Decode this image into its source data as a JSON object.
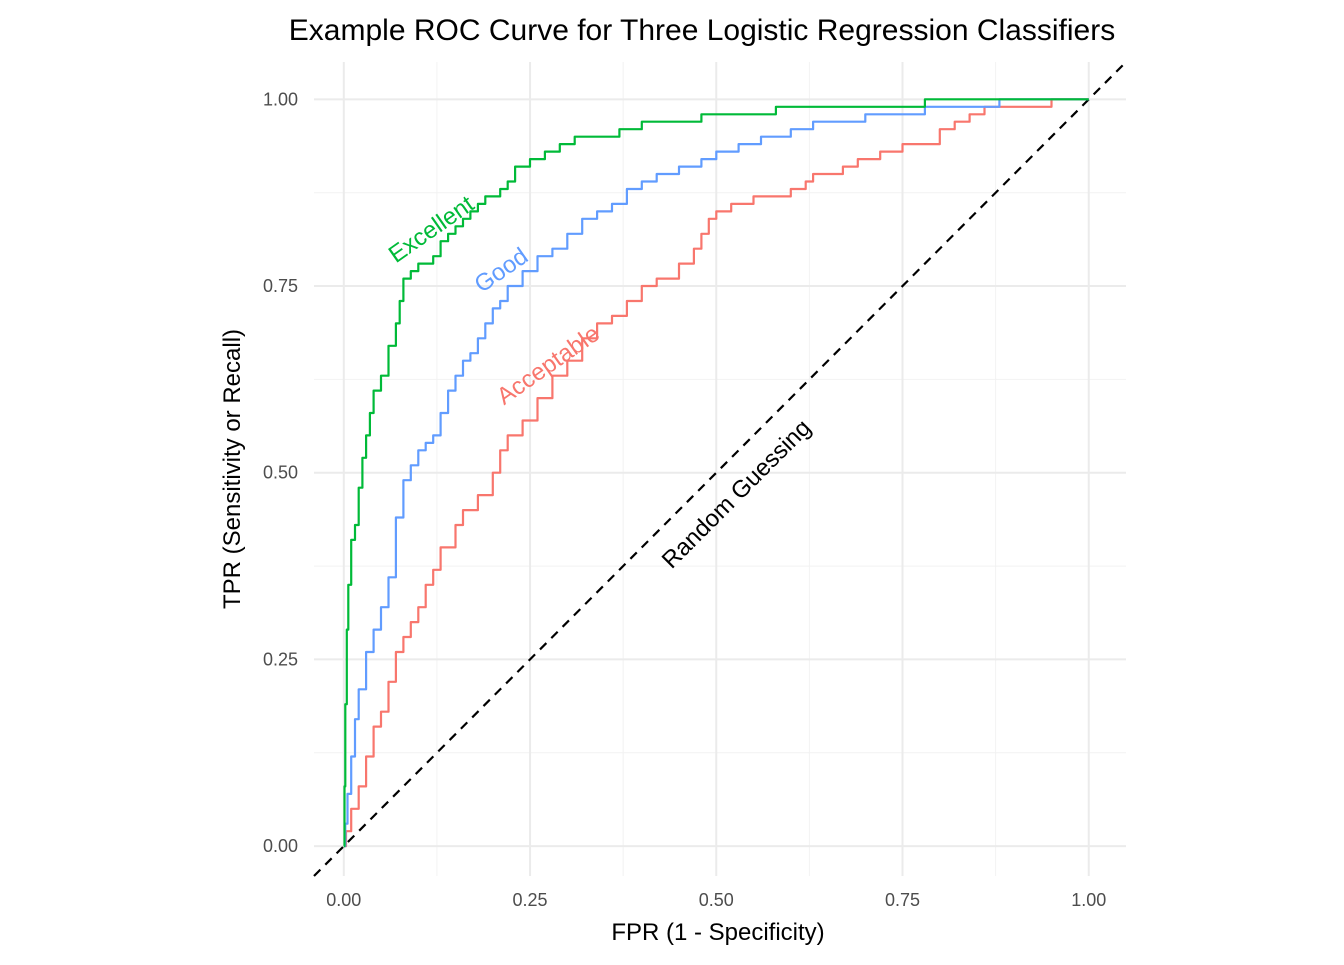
{
  "chart_data": {
    "type": "line",
    "title": "Example ROC Curve for Three Logistic Regression Classifiers",
    "xlabel": "FPR (1 - Specificity)",
    "ylabel": "TPR (Sensitivity or Recall)",
    "xlim": [
      -0.04,
      1.05
    ],
    "ylim": [
      -0.04,
      1.05
    ],
    "x_ticks": [
      0,
      0.25,
      0.5,
      0.75,
      1
    ],
    "y_ticks": [
      0,
      0.25,
      0.5,
      0.75,
      1
    ],
    "x_tick_labels": [
      "0.00",
      "0.25",
      "0.50",
      "0.75",
      "1.00"
    ],
    "y_tick_labels": [
      "0.00",
      "0.25",
      "0.50",
      "0.75",
      "1.00"
    ],
    "grid": true,
    "legend": "none",
    "series": [
      {
        "name": "Acceptable",
        "color": "#F8766D",
        "points": [
          [
            0,
            0
          ],
          [
            0.003,
            0.02
          ],
          [
            0.01,
            0.05
          ],
          [
            0.02,
            0.08
          ],
          [
            0.03,
            0.12
          ],
          [
            0.04,
            0.16
          ],
          [
            0.05,
            0.18
          ],
          [
            0.06,
            0.22
          ],
          [
            0.07,
            0.26
          ],
          [
            0.08,
            0.28
          ],
          [
            0.09,
            0.3
          ],
          [
            0.1,
            0.32
          ],
          [
            0.11,
            0.35
          ],
          [
            0.12,
            0.37
          ],
          [
            0.13,
            0.4
          ],
          [
            0.15,
            0.43
          ],
          [
            0.16,
            0.45
          ],
          [
            0.18,
            0.47
          ],
          [
            0.2,
            0.5
          ],
          [
            0.21,
            0.53
          ],
          [
            0.22,
            0.55
          ],
          [
            0.24,
            0.57
          ],
          [
            0.26,
            0.6
          ],
          [
            0.28,
            0.63
          ],
          [
            0.3,
            0.65
          ],
          [
            0.32,
            0.68
          ],
          [
            0.34,
            0.7
          ],
          [
            0.36,
            0.71
          ],
          [
            0.38,
            0.73
          ],
          [
            0.4,
            0.75
          ],
          [
            0.42,
            0.76
          ],
          [
            0.45,
            0.78
          ],
          [
            0.47,
            0.8
          ],
          [
            0.48,
            0.82
          ],
          [
            0.49,
            0.84
          ],
          [
            0.5,
            0.85
          ],
          [
            0.52,
            0.86
          ],
          [
            0.55,
            0.87
          ],
          [
            0.57,
            0.87
          ],
          [
            0.6,
            0.88
          ],
          [
            0.62,
            0.89
          ],
          [
            0.63,
            0.9
          ],
          [
            0.65,
            0.9
          ],
          [
            0.67,
            0.91
          ],
          [
            0.69,
            0.92
          ],
          [
            0.72,
            0.93
          ],
          [
            0.75,
            0.94
          ],
          [
            0.78,
            0.94
          ],
          [
            0.8,
            0.96
          ],
          [
            0.82,
            0.97
          ],
          [
            0.84,
            0.98
          ],
          [
            0.86,
            0.99
          ],
          [
            0.9,
            0.99
          ],
          [
            0.95,
            1.0
          ],
          [
            1,
            1
          ]
        ]
      },
      {
        "name": "Good",
        "color": "#619CFF",
        "points": [
          [
            0,
            0
          ],
          [
            0.002,
            0.03
          ],
          [
            0.005,
            0.07
          ],
          [
            0.01,
            0.12
          ],
          [
            0.015,
            0.17
          ],
          [
            0.02,
            0.21
          ],
          [
            0.03,
            0.26
          ],
          [
            0.04,
            0.29
          ],
          [
            0.05,
            0.32
          ],
          [
            0.06,
            0.36
          ],
          [
            0.07,
            0.44
          ],
          [
            0.08,
            0.49
          ],
          [
            0.09,
            0.51
          ],
          [
            0.1,
            0.53
          ],
          [
            0.11,
            0.54
          ],
          [
            0.12,
            0.55
          ],
          [
            0.13,
            0.58
          ],
          [
            0.14,
            0.61
          ],
          [
            0.15,
            0.63
          ],
          [
            0.16,
            0.65
          ],
          [
            0.17,
            0.66
          ],
          [
            0.18,
            0.68
          ],
          [
            0.19,
            0.7
          ],
          [
            0.2,
            0.72
          ],
          [
            0.21,
            0.73
          ],
          [
            0.22,
            0.75
          ],
          [
            0.24,
            0.77
          ],
          [
            0.26,
            0.79
          ],
          [
            0.28,
            0.8
          ],
          [
            0.3,
            0.82
          ],
          [
            0.32,
            0.84
          ],
          [
            0.34,
            0.85
          ],
          [
            0.36,
            0.86
          ],
          [
            0.38,
            0.88
          ],
          [
            0.4,
            0.89
          ],
          [
            0.42,
            0.9
          ],
          [
            0.45,
            0.91
          ],
          [
            0.48,
            0.92
          ],
          [
            0.5,
            0.93
          ],
          [
            0.53,
            0.94
          ],
          [
            0.56,
            0.95
          ],
          [
            0.6,
            0.96
          ],
          [
            0.63,
            0.97
          ],
          [
            0.66,
            0.97
          ],
          [
            0.7,
            0.98
          ],
          [
            0.74,
            0.98
          ],
          [
            0.78,
            0.99
          ],
          [
            0.82,
            0.99
          ],
          [
            0.88,
            1.0
          ],
          [
            1,
            1
          ]
        ]
      },
      {
        "name": "Excellent",
        "color": "#00BA38",
        "points": [
          [
            0,
            0
          ],
          [
            0.001,
            0.08
          ],
          [
            0.002,
            0.19
          ],
          [
            0.004,
            0.29
          ],
          [
            0.006,
            0.35
          ],
          [
            0.01,
            0.41
          ],
          [
            0.015,
            0.43
          ],
          [
            0.02,
            0.48
          ],
          [
            0.025,
            0.52
          ],
          [
            0.03,
            0.55
          ],
          [
            0.035,
            0.58
          ],
          [
            0.04,
            0.61
          ],
          [
            0.05,
            0.63
          ],
          [
            0.06,
            0.67
          ],
          [
            0.07,
            0.7
          ],
          [
            0.075,
            0.73
          ],
          [
            0.08,
            0.76
          ],
          [
            0.09,
            0.77
          ],
          [
            0.1,
            0.78
          ],
          [
            0.11,
            0.78
          ],
          [
            0.12,
            0.79
          ],
          [
            0.13,
            0.81
          ],
          [
            0.14,
            0.82
          ],
          [
            0.15,
            0.83
          ],
          [
            0.16,
            0.84
          ],
          [
            0.17,
            0.85
          ],
          [
            0.18,
            0.86
          ],
          [
            0.19,
            0.87
          ],
          [
            0.2,
            0.87
          ],
          [
            0.21,
            0.88
          ],
          [
            0.22,
            0.89
          ],
          [
            0.23,
            0.91
          ],
          [
            0.25,
            0.92
          ],
          [
            0.27,
            0.93
          ],
          [
            0.29,
            0.94
          ],
          [
            0.31,
            0.95
          ],
          [
            0.34,
            0.95
          ],
          [
            0.37,
            0.96
          ],
          [
            0.4,
            0.97
          ],
          [
            0.44,
            0.97
          ],
          [
            0.48,
            0.98
          ],
          [
            0.53,
            0.98
          ],
          [
            0.58,
            0.99
          ],
          [
            0.64,
            0.99
          ],
          [
            0.72,
            0.99
          ],
          [
            0.78,
            1.0
          ],
          [
            1,
            1
          ]
        ]
      }
    ],
    "reference_line": {
      "name": "Random Guessing",
      "label": "Random Guessing",
      "points": [
        [
          -0.04,
          -0.04
        ],
        [
          1.05,
          1.05
        ]
      ],
      "style": "dashed",
      "color": "#000000"
    },
    "annotations": [
      {
        "text": "Excellent",
        "x": 0.07,
        "y": 0.78,
        "angle": 35,
        "color": "#00BA38"
      },
      {
        "text": "Good",
        "x": 0.185,
        "y": 0.74,
        "angle": 35,
        "color": "#619CFF"
      },
      {
        "text": "Acceptable",
        "x": 0.215,
        "y": 0.59,
        "angle": 35,
        "color": "#F8766D"
      },
      {
        "text": "Random Guessing",
        "x": 0.44,
        "y": 0.37,
        "angle": 45,
        "color": "#000000"
      }
    ]
  }
}
